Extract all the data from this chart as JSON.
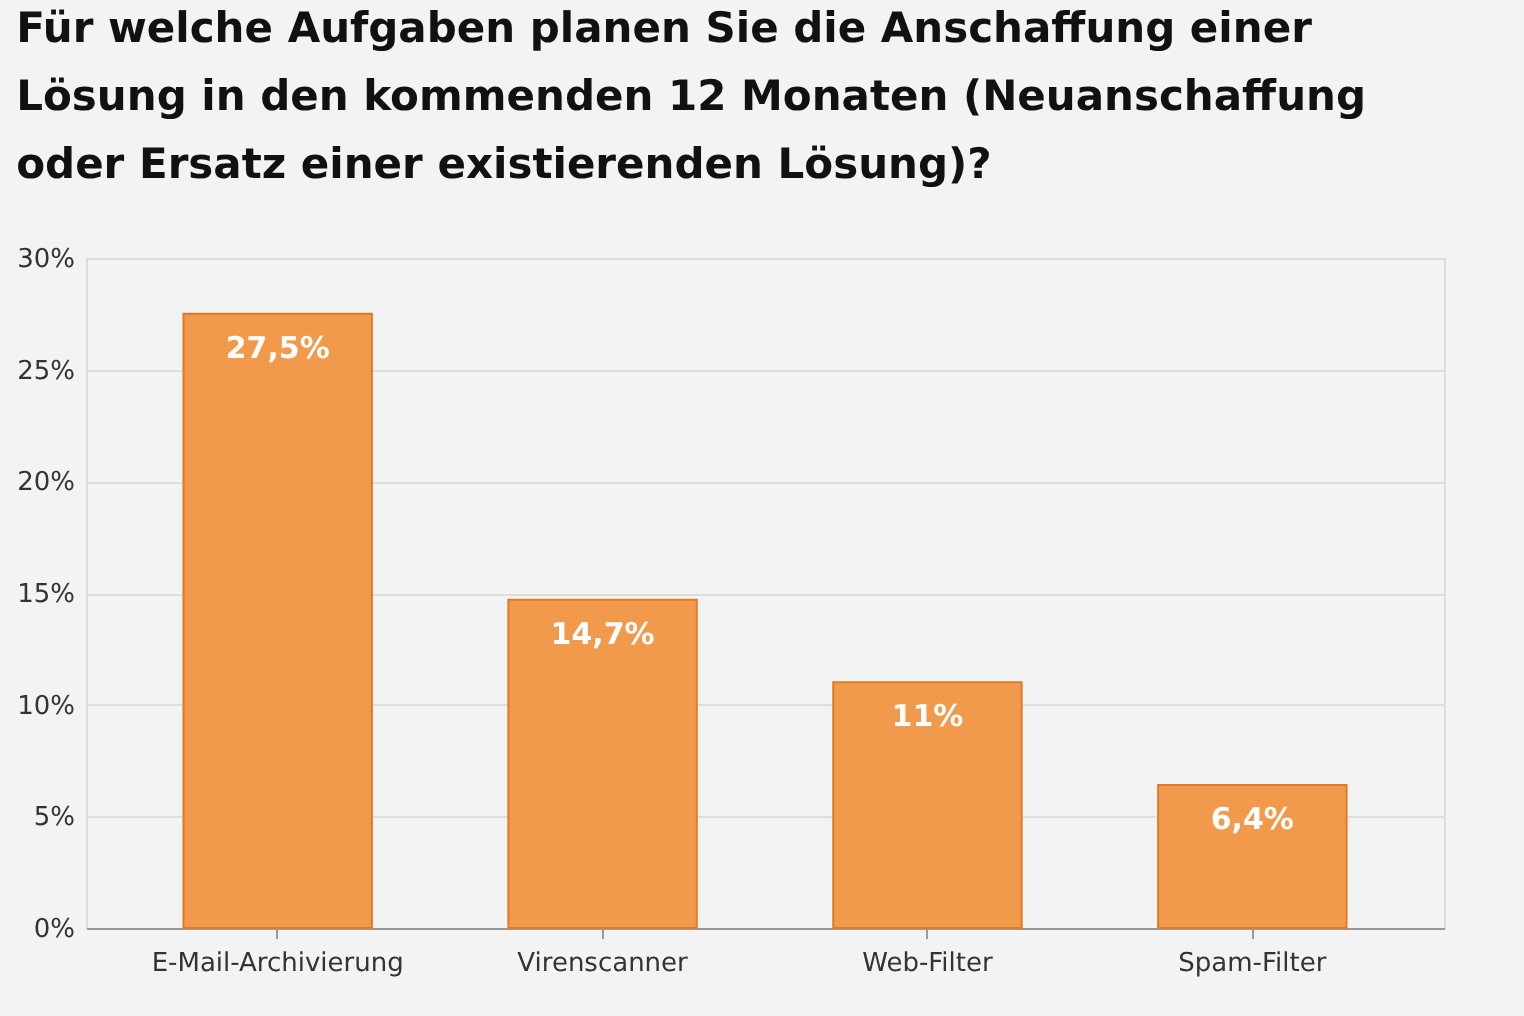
{
  "chart_data": {
    "type": "bar",
    "title": [
      "Für welche Aufgaben planen Sie die Anschaffung einer",
      "Lösung in den kommenden 12 Monaten (Neuanschaffung",
      "oder Ersatz einer existierenden Lösung)?"
    ],
    "categories": [
      "E-Mail-Archivierung",
      "Virenscanner",
      "Web-Filter",
      "Spam-Filter"
    ],
    "values": [
      27.5,
      14.7,
      11,
      6.4
    ],
    "value_labels": [
      "27,5%",
      "14,7%",
      "11%",
      "6,4%"
    ],
    "color": "#f29a4c",
    "ylim": [
      0,
      30
    ],
    "yticks": [
      {
        "value": 0,
        "label": "0%"
      },
      {
        "value": 5,
        "label": "5%"
      },
      {
        "value": 10,
        "label": "10%"
      },
      {
        "value": 15,
        "label": "15%"
      },
      {
        "value": 20,
        "label": "20%"
      },
      {
        "value": 25,
        "label": "25%"
      },
      {
        "value": 30,
        "label": "30%"
      }
    ],
    "grid": "y"
  }
}
